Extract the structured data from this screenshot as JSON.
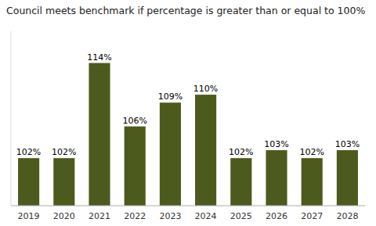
{
  "chart_data": {
    "type": "bar",
    "title": "Council meets benchmark if percentage is greater than or equal to 100%",
    "categories": [
      "2019",
      "2020",
      "2021",
      "2022",
      "2023",
      "2024",
      "2025",
      "2026",
      "2027",
      "2028"
    ],
    "values": [
      102,
      102,
      114,
      106,
      109,
      110,
      102,
      103,
      102,
      103
    ],
    "value_labels": [
      "102%",
      "102%",
      "114%",
      "106%",
      "109%",
      "110%",
      "102%",
      "103%",
      "102%",
      "103%"
    ],
    "data_labels": true,
    "color": "#4d5a1e",
    "ylim": [
      96,
      118
    ],
    "tick_labels": "x",
    "grid": false
  }
}
